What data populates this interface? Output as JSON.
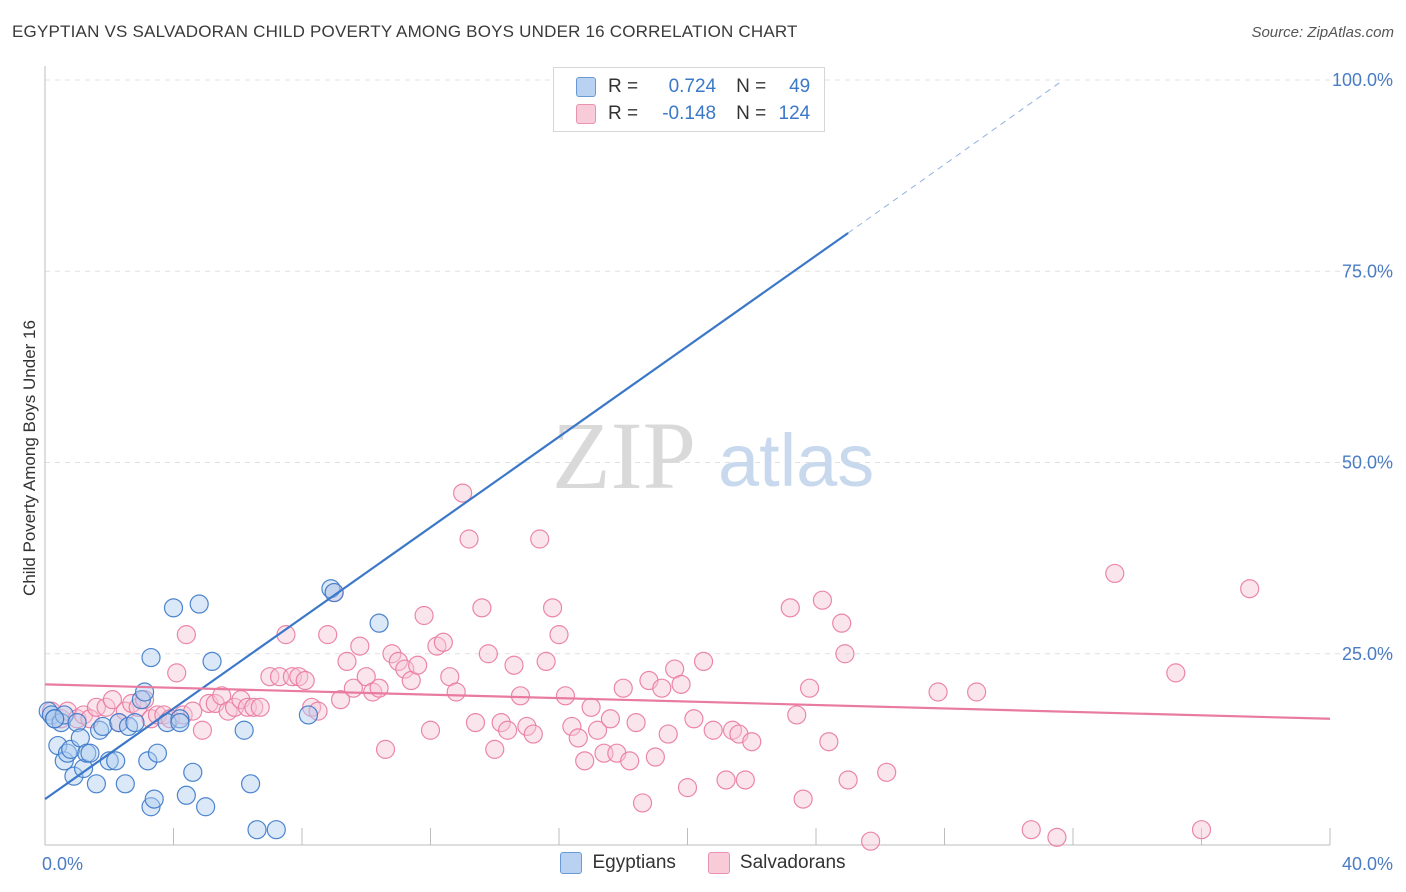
{
  "title": "EGYPTIAN VS SALVADORAN CHILD POVERTY AMONG BOYS UNDER 16 CORRELATION CHART",
  "source": "Source: ZipAtlas.com",
  "watermark": {
    "zip": "ZIP",
    "atlas": "atlas"
  },
  "colors": {
    "blue": "#3b78c8",
    "blue_fill": "#aecbef",
    "pink": "#e97aa0",
    "pink_fill": "#f7c6d6",
    "grid": "#e0e0e0"
  },
  "legend": {
    "rows": [
      {
        "r_label": "R =",
        "r_value": "0.724",
        "n_label": "N =",
        "n_value": "49"
      },
      {
        "r_label": "R =",
        "r_value": "-0.148",
        "n_label": "N =",
        "n_value": "124"
      }
    ]
  },
  "bottom_legend": {
    "egyptians": "Egyptians",
    "salvadorans": "Salvadorans"
  },
  "chart_data": {
    "type": "scatter",
    "title": "EGYPTIAN VS SALVADORAN CHILD POVERTY AMONG BOYS UNDER 16 CORRELATION CHART",
    "xlabel": "",
    "ylabel": "Child Poverty Among Boys Under 16",
    "xlim": [
      0,
      40
    ],
    "ylim": [
      0,
      100
    ],
    "x_tick_labels": [
      "0.0%",
      "40.0%"
    ],
    "y_tick_labels": [
      "25.0%",
      "50.0%",
      "75.0%",
      "100.0%"
    ],
    "y_ticks": [
      25,
      50,
      75,
      100
    ],
    "grid": true,
    "legend_placement": "top-center",
    "series": [
      {
        "name": "Egyptians",
        "R": 0.724,
        "N": 49,
        "trend": {
          "x0": 0,
          "y0": 6,
          "x1": 25.0,
          "y1": 80,
          "dashed_to_x": 31.7,
          "dashed_to_y": 100
        },
        "points": [
          [
            0.1,
            17.5
          ],
          [
            0.2,
            17
          ],
          [
            0.3,
            16.5
          ],
          [
            0.4,
            13
          ],
          [
            0.5,
            16
          ],
          [
            0.6,
            17
          ],
          [
            0.6,
            11
          ],
          [
            0.7,
            12
          ],
          [
            0.8,
            12.5
          ],
          [
            0.9,
            9
          ],
          [
            1.0,
            16
          ],
          [
            1.1,
            14
          ],
          [
            1.2,
            10
          ],
          [
            1.3,
            12
          ],
          [
            1.4,
            12
          ],
          [
            1.6,
            8
          ],
          [
            1.7,
            15
          ],
          [
            1.8,
            15.5
          ],
          [
            2.0,
            11
          ],
          [
            2.2,
            11
          ],
          [
            2.3,
            16
          ],
          [
            2.5,
            8
          ],
          [
            2.6,
            15.5
          ],
          [
            2.8,
            16
          ],
          [
            3.0,
            19
          ],
          [
            3.1,
            20
          ],
          [
            3.2,
            11
          ],
          [
            3.3,
            5
          ],
          [
            3.4,
            6
          ],
          [
            3.5,
            12
          ],
          [
            3.8,
            16
          ],
          [
            4.0,
            31
          ],
          [
            4.2,
            16.5
          ],
          [
            4.4,
            6.5
          ],
          [
            4.6,
            9.5
          ],
          [
            4.8,
            31.5
          ],
          [
            5.0,
            5
          ],
          [
            5.2,
            24
          ],
          [
            6.2,
            15
          ],
          [
            6.4,
            8
          ],
          [
            6.6,
            2
          ],
          [
            7.2,
            2
          ],
          [
            8.2,
            17
          ],
          [
            8.9,
            33.5
          ],
          [
            9.0,
            33
          ],
          [
            10.4,
            29
          ],
          [
            3.3,
            24.5
          ],
          [
            4.2,
            16
          ],
          [
            0.3,
            16.5
          ]
        ]
      },
      {
        "name": "Salvadorans",
        "R": -0.148,
        "N": 124,
        "trend": {
          "x0": 0,
          "y0": 21,
          "x1": 40,
          "y1": 16.5
        },
        "points": [
          [
            0.2,
            17.5
          ],
          [
            0.5,
            16.5
          ],
          [
            0.7,
            17.5
          ],
          [
            1.0,
            16.5
          ],
          [
            1.2,
            17
          ],
          [
            1.4,
            16.5
          ],
          [
            1.6,
            18
          ],
          [
            1.9,
            18
          ],
          [
            2.1,
            19
          ],
          [
            2.3,
            16
          ],
          [
            2.5,
            17.5
          ],
          [
            2.7,
            18.5
          ],
          [
            2.9,
            18
          ],
          [
            3.1,
            19
          ],
          [
            3.3,
            16.5
          ],
          [
            3.5,
            17
          ],
          [
            3.7,
            17
          ],
          [
            3.9,
            16.5
          ],
          [
            4.1,
            22.5
          ],
          [
            4.3,
            17
          ],
          [
            4.4,
            27.5
          ],
          [
            4.6,
            17.5
          ],
          [
            4.9,
            15
          ],
          [
            5.1,
            18.5
          ],
          [
            5.3,
            18.5
          ],
          [
            5.5,
            19.5
          ],
          [
            5.7,
            17.5
          ],
          [
            5.9,
            18
          ],
          [
            6.1,
            19
          ],
          [
            6.3,
            18
          ],
          [
            6.5,
            18
          ],
          [
            6.7,
            18
          ],
          [
            7.0,
            22
          ],
          [
            7.3,
            22
          ],
          [
            7.5,
            27.5
          ],
          [
            7.7,
            22
          ],
          [
            7.9,
            22
          ],
          [
            8.1,
            21.5
          ],
          [
            8.3,
            18
          ],
          [
            8.5,
            17.5
          ],
          [
            8.8,
            27.5
          ],
          [
            9.0,
            33
          ],
          [
            9.2,
            19
          ],
          [
            9.4,
            24
          ],
          [
            9.6,
            20.5
          ],
          [
            9.8,
            26
          ],
          [
            10.0,
            22
          ],
          [
            10.2,
            20
          ],
          [
            10.4,
            20.5
          ],
          [
            10.6,
            12.5
          ],
          [
            10.8,
            25
          ],
          [
            11.0,
            24
          ],
          [
            11.2,
            23
          ],
          [
            11.4,
            21.5
          ],
          [
            11.6,
            23.5
          ],
          [
            11.8,
            30
          ],
          [
            12.0,
            15
          ],
          [
            12.2,
            26
          ],
          [
            12.4,
            26.5
          ],
          [
            12.6,
            22
          ],
          [
            12.8,
            20
          ],
          [
            13.0,
            46
          ],
          [
            13.2,
            40
          ],
          [
            13.4,
            16
          ],
          [
            13.6,
            31
          ],
          [
            13.8,
            25
          ],
          [
            14.0,
            12.5
          ],
          [
            14.2,
            16
          ],
          [
            14.4,
            15
          ],
          [
            14.6,
            23.5
          ],
          [
            14.8,
            19.5
          ],
          [
            15.0,
            15.5
          ],
          [
            15.2,
            14.5
          ],
          [
            15.4,
            40
          ],
          [
            15.6,
            24
          ],
          [
            15.8,
            31
          ],
          [
            16.0,
            27.5
          ],
          [
            16.2,
            19.5
          ],
          [
            16.4,
            15.5
          ],
          [
            16.6,
            14
          ],
          [
            16.8,
            11
          ],
          [
            17.0,
            18
          ],
          [
            17.2,
            15
          ],
          [
            17.4,
            12
          ],
          [
            17.6,
            16.5
          ],
          [
            17.8,
            12
          ],
          [
            18.0,
            20.5
          ],
          [
            18.2,
            11
          ],
          [
            18.4,
            16
          ],
          [
            18.6,
            5.5
          ],
          [
            18.8,
            21.5
          ],
          [
            19.0,
            11.5
          ],
          [
            19.2,
            20.5
          ],
          [
            19.4,
            14.5
          ],
          [
            19.6,
            23
          ],
          [
            19.8,
            21
          ],
          [
            20.0,
            7.5
          ],
          [
            20.2,
            16.5
          ],
          [
            20.5,
            24
          ],
          [
            20.8,
            15
          ],
          [
            21.2,
            8.5
          ],
          [
            21.4,
            15
          ],
          [
            21.6,
            14.5
          ],
          [
            21.8,
            8.5
          ],
          [
            22.0,
            13.5
          ],
          [
            23.2,
            31
          ],
          [
            23.4,
            17
          ],
          [
            23.6,
            6
          ],
          [
            23.8,
            20.5
          ],
          [
            24.2,
            32
          ],
          [
            24.4,
            13.5
          ],
          [
            24.8,
            29
          ],
          [
            24.9,
            25
          ],
          [
            25.0,
            8.5
          ],
          [
            25.7,
            0.5
          ],
          [
            26.2,
            9.5
          ],
          [
            27.8,
            20
          ],
          [
            29.0,
            20
          ],
          [
            30.7,
            2
          ],
          [
            31.5,
            1
          ],
          [
            33.3,
            35.5
          ],
          [
            35.2,
            22.5
          ],
          [
            36.0,
            2
          ],
          [
            37.5,
            33.5
          ]
        ]
      }
    ]
  }
}
